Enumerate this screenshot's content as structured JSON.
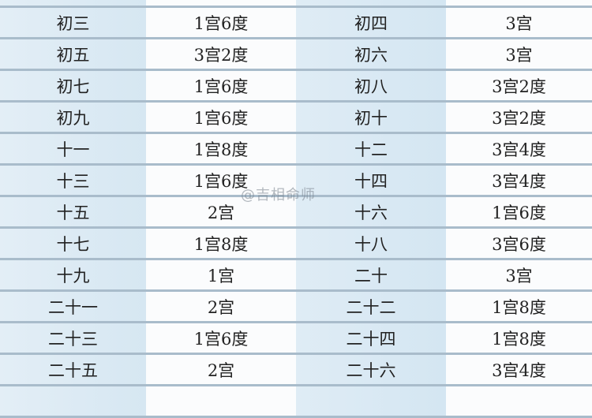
{
  "table": {
    "rows": [
      [
        "",
        "",
        "",
        ""
      ],
      [
        "初三",
        "1宫6度",
        "初四",
        "3宫"
      ],
      [
        "初五",
        "3宫2度",
        "初六",
        "3宫"
      ],
      [
        "初七",
        "1宫6度",
        "初八",
        "3宫2度"
      ],
      [
        "初九",
        "1宫6度",
        "初十",
        "3宫2度"
      ],
      [
        "十一",
        "1宫8度",
        "十二",
        "3宫4度"
      ],
      [
        "十三",
        "1宫6度",
        "十四",
        "3宫4度"
      ],
      [
        "十五",
        "2宫",
        "十六",
        "1宫6度"
      ],
      [
        "十七",
        "1宫8度",
        "十八",
        "3宫6度"
      ],
      [
        "十九",
        "1宫",
        "二十",
        "3宫"
      ],
      [
        "二十一",
        "2宫",
        "二十二",
        "1宫8度"
      ],
      [
        "二十三",
        "1宫6度",
        "二十四",
        "1宫8度"
      ],
      [
        "二十五",
        "2宫",
        "二十六",
        "3宫4度"
      ],
      [
        "",
        "",
        "",
        ""
      ]
    ]
  },
  "watermark": "@吉相命师",
  "colors": {
    "shaded_column": "#d9e9f3",
    "rule": "#a9bccb"
  }
}
